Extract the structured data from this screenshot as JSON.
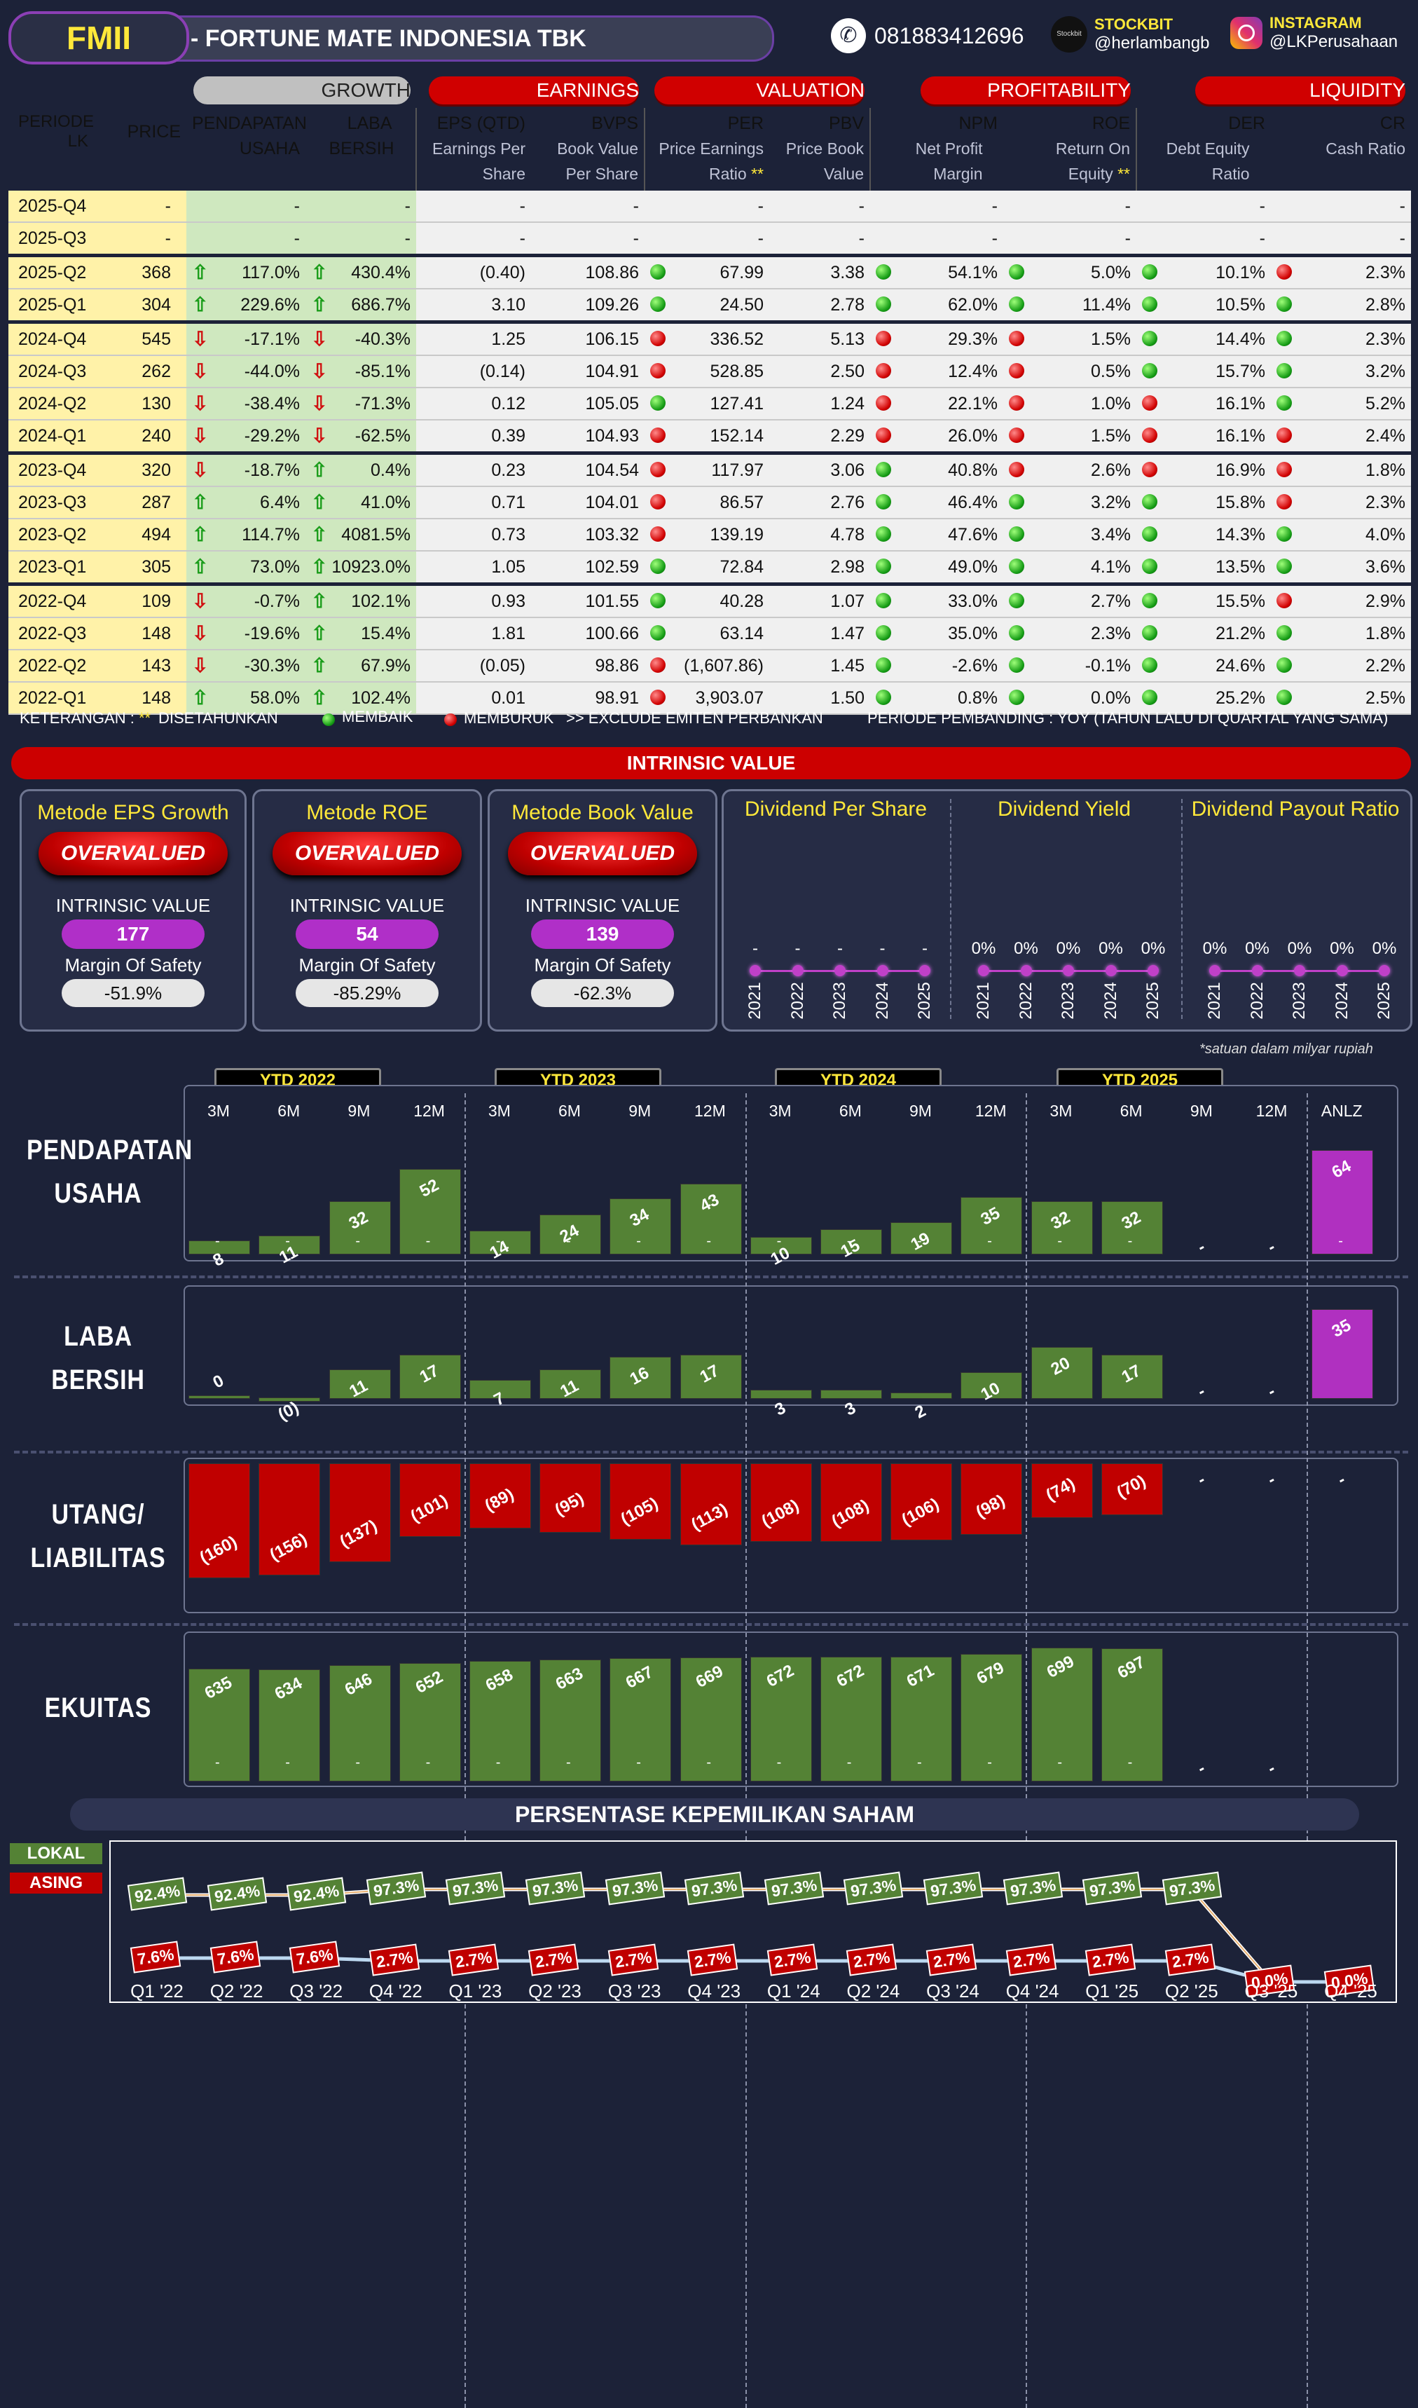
{
  "header": {
    "ticker": "FMII",
    "company": "-  FORTUNE MATE INDONESIA TBK",
    "phone": "081883412696",
    "stockbit_label": "STOCKBIT",
    "stockbit_handle": "@herlambangb",
    "instagram_label": "INSTAGRAM",
    "instagram_handle": "@LKPerusahaan",
    "stockbit_logo_text": "Stockbit"
  },
  "table": {
    "groups": {
      "growth": "GROWTH",
      "earnings": "EARNINGS",
      "valuation": "VALUATION",
      "profitability": "PROFITABILITY",
      "liquidity": "LIQUIDITY"
    },
    "cols": {
      "periode": "PERIODE LK",
      "price": "PRICE",
      "pend": "PENDAPATAN USAHA",
      "laba": "LABA BERSIH",
      "eps": "EPS (QTD)",
      "eps_sub": "Earnings Per Share",
      "bvps": "BVPS",
      "bvps_sub": "Book Value Per Share",
      "per": "PER",
      "per_sub": "Price Earnings Ratio",
      "pbv": "PBV",
      "pbv_sub": "Price Book Value",
      "npm": "NPM",
      "npm_sub": "Net Profit Margin",
      "roe": "ROE",
      "roe_sub": "Return On Equity",
      "der": "DER",
      "der_sub": "Debt Equity Ratio",
      "cr": "CR",
      "cr_sub": "Cash Ratio",
      "stars": "**"
    },
    "rows": [
      {
        "p": "2025-Q4",
        "price": "-",
        "g1": "-",
        "a1": "",
        "g2": "-",
        "a2": "",
        "eps": "-",
        "bvps": "-",
        "d1": "",
        "per": "-",
        "pbv": "-",
        "d2": "",
        "npm": "-",
        "d3": "",
        "roe": "-",
        "d4": "",
        "der": "-",
        "d5": "",
        "cr": "-"
      },
      {
        "p": "2025-Q3",
        "price": "-",
        "g1": "-",
        "a1": "",
        "g2": "-",
        "a2": "",
        "eps": "-",
        "bvps": "-",
        "d1": "",
        "per": "-",
        "pbv": "-",
        "d2": "",
        "npm": "-",
        "d3": "",
        "roe": "-",
        "d4": "",
        "der": "-",
        "d5": "",
        "cr": "-"
      },
      {
        "p": "2025-Q2",
        "price": "368",
        "g1": "117.0%",
        "a1": "up",
        "g2": "430.4%",
        "a2": "up",
        "eps": "(0.40)",
        "bvps": "108.86",
        "d1": "g",
        "per": "67.99",
        "pbv": "3.38",
        "d2": "g",
        "npm": "54.1%",
        "d3": "g",
        "roe": "5.0%",
        "d4": "g",
        "der": "10.1%",
        "d5": "r",
        "cr": "2.3%"
      },
      {
        "p": "2025-Q1",
        "price": "304",
        "g1": "229.6%",
        "a1": "up",
        "g2": "686.7%",
        "a2": "up",
        "eps": "3.10",
        "bvps": "109.26",
        "d1": "g",
        "per": "24.50",
        "pbv": "2.78",
        "d2": "g",
        "npm": "62.0%",
        "d3": "g",
        "roe": "11.4%",
        "d4": "g",
        "der": "10.5%",
        "d5": "g",
        "cr": "2.8%"
      },
      {
        "p": "2024-Q4",
        "price": "545",
        "g1": "-17.1%",
        "a1": "dn",
        "g2": "-40.3%",
        "a2": "dn",
        "eps": "1.25",
        "bvps": "106.15",
        "d1": "r",
        "per": "336.52",
        "pbv": "5.13",
        "d2": "r",
        "npm": "29.3%",
        "d3": "r",
        "roe": "1.5%",
        "d4": "g",
        "der": "14.4%",
        "d5": "g",
        "cr": "2.3%"
      },
      {
        "p": "2024-Q3",
        "price": "262",
        "g1": "-44.0%",
        "a1": "dn",
        "g2": "-85.1%",
        "a2": "dn",
        "eps": "(0.14)",
        "bvps": "104.91",
        "d1": "r",
        "per": "528.85",
        "pbv": "2.50",
        "d2": "r",
        "npm": "12.4%",
        "d3": "r",
        "roe": "0.5%",
        "d4": "g",
        "der": "15.7%",
        "d5": "g",
        "cr": "3.2%"
      },
      {
        "p": "2024-Q2",
        "price": "130",
        "g1": "-38.4%",
        "a1": "dn",
        "g2": "-71.3%",
        "a2": "dn",
        "eps": "0.12",
        "bvps": "105.05",
        "d1": "g",
        "per": "127.41",
        "pbv": "1.24",
        "d2": "r",
        "npm": "22.1%",
        "d3": "r",
        "roe": "1.0%",
        "d4": "r",
        "der": "16.1%",
        "d5": "g",
        "cr": "5.2%"
      },
      {
        "p": "2024-Q1",
        "price": "240",
        "g1": "-29.2%",
        "a1": "dn",
        "g2": "-62.5%",
        "a2": "dn",
        "eps": "0.39",
        "bvps": "104.93",
        "d1": "r",
        "per": "152.14",
        "pbv": "2.29",
        "d2": "r",
        "npm": "26.0%",
        "d3": "r",
        "roe": "1.5%",
        "d4": "r",
        "der": "16.1%",
        "d5": "r",
        "cr": "2.4%"
      },
      {
        "p": "2023-Q4",
        "price": "320",
        "g1": "-18.7%",
        "a1": "dn",
        "g2": "0.4%",
        "a2": "up",
        "eps": "0.23",
        "bvps": "104.54",
        "d1": "r",
        "per": "117.97",
        "pbv": "3.06",
        "d2": "g",
        "npm": "40.8%",
        "d3": "r",
        "roe": "2.6%",
        "d4": "r",
        "der": "16.9%",
        "d5": "r",
        "cr": "1.8%"
      },
      {
        "p": "2023-Q3",
        "price": "287",
        "g1": "6.4%",
        "a1": "up",
        "g2": "41.0%",
        "a2": "up",
        "eps": "0.71",
        "bvps": "104.01",
        "d1": "r",
        "per": "86.57",
        "pbv": "2.76",
        "d2": "g",
        "npm": "46.4%",
        "d3": "g",
        "roe": "3.2%",
        "d4": "g",
        "der": "15.8%",
        "d5": "r",
        "cr": "2.3%"
      },
      {
        "p": "2023-Q2",
        "price": "494",
        "g1": "114.7%",
        "a1": "up",
        "g2": "4081.5%",
        "a2": "up",
        "eps": "0.73",
        "bvps": "103.32",
        "d1": "r",
        "per": "139.19",
        "pbv": "4.78",
        "d2": "g",
        "npm": "47.6%",
        "d3": "g",
        "roe": "3.4%",
        "d4": "g",
        "der": "14.3%",
        "d5": "g",
        "cr": "4.0%"
      },
      {
        "p": "2023-Q1",
        "price": "305",
        "g1": "73.0%",
        "a1": "up",
        "g2": "10923.0%",
        "a2": "up",
        "eps": "1.05",
        "bvps": "102.59",
        "d1": "g",
        "per": "72.84",
        "pbv": "2.98",
        "d2": "g",
        "npm": "49.0%",
        "d3": "g",
        "roe": "4.1%",
        "d4": "g",
        "der": "13.5%",
        "d5": "g",
        "cr": "3.6%"
      },
      {
        "p": "2022-Q4",
        "price": "109",
        "g1": "-0.7%",
        "a1": "dn",
        "g2": "102.1%",
        "a2": "up",
        "eps": "0.93",
        "bvps": "101.55",
        "d1": "g",
        "per": "40.28",
        "pbv": "1.07",
        "d2": "g",
        "npm": "33.0%",
        "d3": "g",
        "roe": "2.7%",
        "d4": "g",
        "der": "15.5%",
        "d5": "r",
        "cr": "2.9%"
      },
      {
        "p": "2022-Q3",
        "price": "148",
        "g1": "-19.6%",
        "a1": "dn",
        "g2": "15.4%",
        "a2": "up",
        "eps": "1.81",
        "bvps": "100.66",
        "d1": "g",
        "per": "63.14",
        "pbv": "1.47",
        "d2": "g",
        "npm": "35.0%",
        "d3": "g",
        "roe": "2.3%",
        "d4": "g",
        "der": "21.2%",
        "d5": "g",
        "cr": "1.8%"
      },
      {
        "p": "2022-Q2",
        "price": "143",
        "g1": "-30.3%",
        "a1": "dn",
        "g2": "67.9%",
        "a2": "up",
        "eps": "(0.05)",
        "bvps": "98.86",
        "d1": "r",
        "per": "(1,607.86)",
        "pbv": "1.45",
        "d2": "g",
        "npm": "-2.6%",
        "d3": "g",
        "roe": "-0.1%",
        "d4": "g",
        "der": "24.6%",
        "d5": "g",
        "cr": "2.2%"
      },
      {
        "p": "2022-Q1",
        "price": "148",
        "g1": "58.0%",
        "a1": "up",
        "g2": "102.4%",
        "a2": "up",
        "eps": "0.01",
        "bvps": "98.91",
        "d1": "r",
        "per": "3,903.07",
        "pbv": "1.50",
        "d2": "g",
        "npm": "0.8%",
        "d3": "g",
        "roe": "0.0%",
        "d4": "g",
        "der": "25.2%",
        "d5": "g",
        "cr": "2.5%"
      }
    ]
  },
  "legend": {
    "ket": "KETERANGAN :",
    "stars": "**",
    "stars_txt": "DISETAHUNKAN",
    "membaik": "MEMBAIK",
    "memburuk": "MEMBURUK",
    "exclude": ">> EXCLUDE EMITEN PERBANKAN",
    "pembanding": "PERIODE PEMBANDING : YOY (TAHUN LALU DI QUARTAL YANG SAMA)"
  },
  "intrinsic": {
    "banner": "INTRINSIC VALUE",
    "iv_label": "INTRINSIC VALUE",
    "mos_label": "Margin Of Safety",
    "methods": [
      {
        "title": "Metode EPS Growth",
        "status": "OVERVALUED",
        "value": "177",
        "mos": "-51.9%"
      },
      {
        "title": "Metode ROE",
        "status": "OVERVALUED",
        "value": "54",
        "mos": "-85.29%"
      },
      {
        "title": "Metode Book Value",
        "status": "OVERVALUED",
        "value": "139",
        "mos": "-62.3%"
      }
    ],
    "dividends": [
      {
        "title": "Dividend Per Share",
        "values": [
          "-",
          "-",
          "-",
          "-",
          "-"
        ]
      },
      {
        "title": "Dividend Yield",
        "values": [
          "0%",
          "0%",
          "0%",
          "0%",
          "0%"
        ]
      },
      {
        "title": "Dividend Payout Ratio",
        "values": [
          "0%",
          "0%",
          "0%",
          "0%",
          "0%"
        ]
      }
    ],
    "years": [
      "2021",
      "2022",
      "2023",
      "2024",
      "2025"
    ]
  },
  "charts": {
    "note": "*satuan dalam milyar rupiah",
    "ytd": [
      "YTD 2022",
      "YTD 2023",
      "YTD 2024",
      "YTD 2025"
    ],
    "months": [
      "3M",
      "6M",
      "9M",
      "12M",
      "3M",
      "6M",
      "9M",
      "12M",
      "3M",
      "6M",
      "9M",
      "12M",
      "3M",
      "6M",
      "9M",
      "12M",
      "ANLZ"
    ],
    "rows": [
      {
        "title1": "PENDAPATAN",
        "title2": "USAHA",
        "values": [
          8,
          11,
          32,
          52,
          14,
          24,
          34,
          43,
          10,
          15,
          19,
          35,
          32,
          32,
          null,
          null,
          64
        ],
        "labels": [
          "8",
          "11",
          "32",
          "52",
          "14",
          "24",
          "34",
          "43",
          "10",
          "15",
          "19",
          "35",
          "32",
          "32",
          "-",
          "-",
          "64"
        ]
      },
      {
        "title1": "LABA",
        "title2": "BERSIH",
        "values": [
          0,
          -0.4,
          11,
          17,
          7,
          11,
          16,
          17,
          3,
          3,
          2,
          10,
          20,
          17,
          null,
          null,
          35
        ],
        "labels": [
          "0",
          "(0)",
          "11",
          "17",
          "7",
          "11",
          "16",
          "17",
          "3",
          "3",
          "2",
          "10",
          "20",
          "17",
          "-",
          "-",
          "35"
        ]
      },
      {
        "title1": "UTANG/",
        "title2": "LIABILITAS",
        "values": [
          -160,
          -156,
          -137,
          -101,
          -89,
          -95,
          -105,
          -113,
          -108,
          -108,
          -106,
          -98,
          -74,
          -70,
          null,
          null,
          null
        ],
        "labels": [
          "(160)",
          "(156)",
          "(137)",
          "(101)",
          "(89)",
          "(95)",
          "(105)",
          "(113)",
          "(108)",
          "(108)",
          "(106)",
          "(98)",
          "(74)",
          "(70)",
          "-",
          "-",
          "-"
        ]
      },
      {
        "title1": "EKUITAS",
        "title2": "",
        "values": [
          635,
          634,
          646,
          652,
          658,
          663,
          667,
          669,
          672,
          672,
          671,
          679,
          699,
          697,
          null,
          null,
          null
        ],
        "labels": [
          "635",
          "634",
          "646",
          "652",
          "658",
          "663",
          "667",
          "669",
          "672",
          "672",
          "671",
          "679",
          "699",
          "697",
          "-",
          "-",
          ""
        ]
      }
    ],
    "dash": "-"
  },
  "ownership": {
    "title": "PERSENTASE KEPEMILIKAN SAHAM",
    "lokal_label": "LOKAL",
    "asing_label": "ASING",
    "quarters": [
      "Q1 '22",
      "Q2 '22",
      "Q3 '22",
      "Q4 '22",
      "Q1 '23",
      "Q2 '23",
      "Q3 '23",
      "Q4 '23",
      "Q1 '24",
      "Q2 '24",
      "Q3 '24",
      "Q4 '24",
      "Q1 '25",
      "Q2 '25",
      "Q3 '25",
      "Q4 '25"
    ],
    "lokal": [
      92.4,
      92.4,
      92.4,
      97.3,
      97.3,
      97.3,
      97.3,
      97.3,
      97.3,
      97.3,
      97.3,
      97.3,
      97.3,
      97.3,
      0.0,
      0.0
    ],
    "lokal_labels": [
      "92.4%",
      "92.4%",
      "92.4%",
      "97.3%",
      "97.3%",
      "97.3%",
      "97.3%",
      "97.3%",
      "97.3%",
      "97.3%",
      "97.3%",
      "97.3%",
      "97.3%",
      "97.3%",
      "",
      ""
    ],
    "asing": [
      7.6,
      7.6,
      7.6,
      2.7,
      2.7,
      2.7,
      2.7,
      2.7,
      2.7,
      2.7,
      2.7,
      2.7,
      2.7,
      2.7,
      0.0,
      0.0
    ],
    "asing_labels": [
      "7.6%",
      "7.6%",
      "7.6%",
      "2.7%",
      "2.7%",
      "2.7%",
      "2.7%",
      "2.7%",
      "2.7%",
      "2.7%",
      "2.7%",
      "2.7%",
      "2.7%",
      "2.7%",
      "0.0%",
      "0.0%"
    ],
    "colors": {
      "lokal": "#548235",
      "asing": "#c00000"
    }
  }
}
